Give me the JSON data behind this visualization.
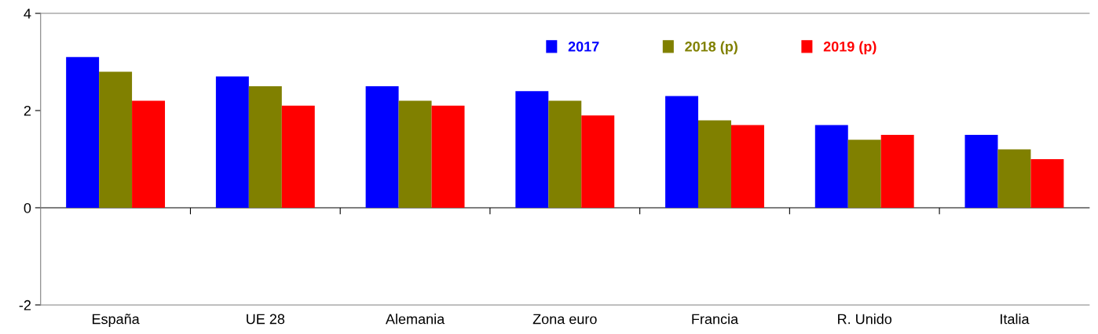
{
  "chart_data": {
    "type": "bar",
    "categories": [
      "España",
      "UE 28",
      "Alemania",
      "Zona euro",
      "Francia",
      "R. Unido",
      "Italia"
    ],
    "series": [
      {
        "name": "2017",
        "color": "#0000ff",
        "values": [
          3.1,
          2.7,
          2.5,
          2.4,
          2.3,
          1.7,
          1.5
        ]
      },
      {
        "name": "2018 (p)",
        "color": "#808000",
        "values": [
          2.8,
          2.5,
          2.2,
          2.2,
          1.8,
          1.4,
          1.2
        ]
      },
      {
        "name": "2019 (p)",
        "color": "#ff0000",
        "values": [
          2.2,
          2.1,
          2.1,
          1.9,
          1.7,
          1.5,
          1.0
        ]
      }
    ],
    "ylim": [
      -2,
      4
    ],
    "yticks": [
      -2,
      0,
      2,
      4
    ],
    "legend": "top"
  }
}
